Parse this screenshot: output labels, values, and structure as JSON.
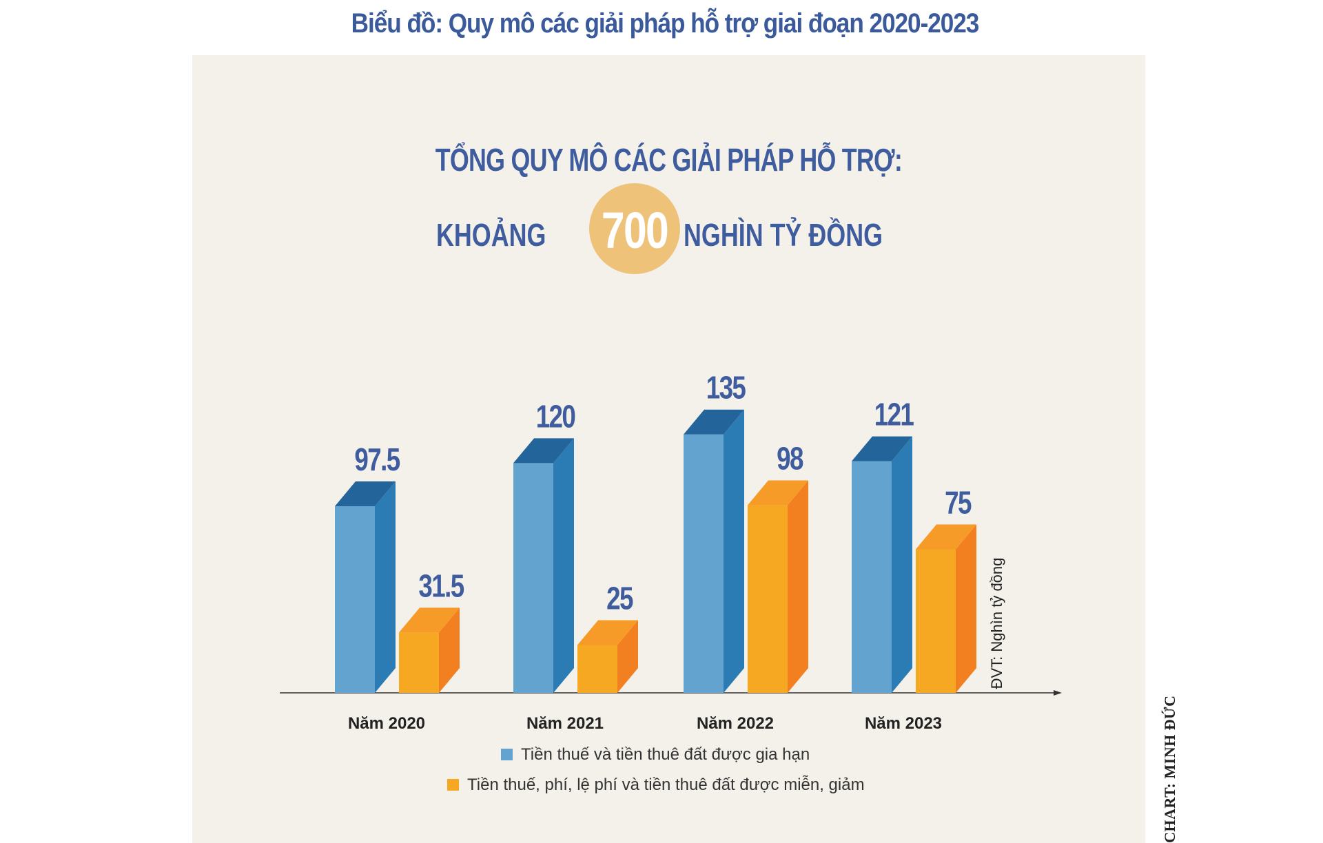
{
  "page_title": "Biểu đồ: Quy mô các giải pháp hỗ trợ giai đoạn 2020-2023",
  "headline": {
    "line1": "TỔNG QUY MÔ CÁC GIẢI PHÁP HỖ TRỢ:",
    "prefix": "KHOẢNG",
    "number": "700",
    "suffix": "NGHÌN TỶ ĐỒNG"
  },
  "credit": "CHART: MINH ĐỨC",
  "colors": {
    "blue_front": "#62a3d0",
    "blue_side": "#2b7cb4",
    "blue_top": "#23649a",
    "orange_front": "#f7a823",
    "orange_side": "#f38020",
    "orange_top": "#f69a28",
    "label_blue": "#3f5d9e",
    "circle": "#efc27a",
    "panel": "#f4f1ea"
  },
  "chart_data": {
    "type": "bar",
    "title": "",
    "categories": [
      "Năm 2020",
      "Năm 2021",
      "Năm 2022",
      "Năm 2023"
    ],
    "unit_label": "ĐVT: Nghìn tỷ đồng",
    "series": [
      {
        "name": "Tiền thuế và tiền thuê đất được gia hạn",
        "values": [
          97.5,
          120,
          135,
          121
        ],
        "labels": [
          "97.5",
          "120",
          "135",
          "121"
        ],
        "color": "#62a3d0"
      },
      {
        "name": "Tiền thuế, phí, lệ phí và tiền thuê đất được miễn, giảm",
        "values": [
          31.5,
          25,
          98,
          75
        ],
        "labels": [
          "31.5",
          "25",
          "98",
          "75"
        ],
        "color": "#f7a823"
      }
    ],
    "ylim": [
      0,
      140
    ],
    "grid": false,
    "legend_position": "bottom-center",
    "style": "3d-columns"
  }
}
